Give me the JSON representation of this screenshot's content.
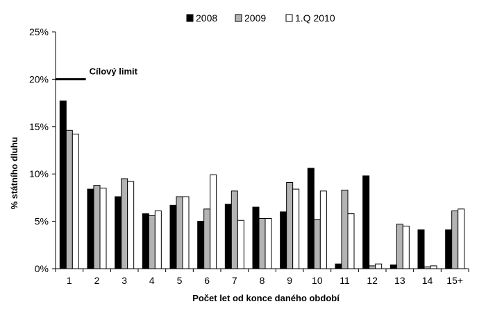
{
  "chart_data": {
    "type": "bar",
    "xlabel": "Počet let od konce daného období",
    "ylabel": "% státního dluhu",
    "ylim": [
      0,
      25
    ],
    "yticks": [
      0,
      5,
      10,
      15,
      20,
      25
    ],
    "ytick_labels": [
      "0%",
      "5%",
      "10%",
      "15%",
      "20%",
      "25%"
    ],
    "grid": false,
    "legend_position": "top-center",
    "categories": [
      "1",
      "2",
      "3",
      "4",
      "5",
      "6",
      "7",
      "8",
      "9",
      "10",
      "11",
      "12",
      "13",
      "14",
      "15+"
    ],
    "series": [
      {
        "name": "2008",
        "color": "#000000",
        "values": [
          17.7,
          8.4,
          7.6,
          5.8,
          6.7,
          5.0,
          6.8,
          6.5,
          6.0,
          10.6,
          0.5,
          9.8,
          0.4,
          4.1,
          4.1
        ]
      },
      {
        "name": "2009",
        "color": "#b3b3b3",
        "values": [
          14.6,
          8.8,
          9.5,
          5.6,
          7.6,
          6.3,
          8.2,
          5.3,
          9.1,
          5.2,
          8.3,
          0.3,
          4.7,
          0.2,
          6.1
        ]
      },
      {
        "name": "1.Q 2010",
        "color": "#ffffff",
        "values": [
          14.2,
          8.5,
          9.2,
          6.1,
          7.6,
          9.9,
          5.1,
          5.3,
          8.4,
          8.2,
          5.8,
          0.5,
          4.5,
          0.3,
          6.3
        ]
      }
    ],
    "annotations": [
      {
        "type": "horizontal-line",
        "label": "Cílový limit",
        "y": 20,
        "x_start": "1",
        "x_end": "2"
      }
    ]
  }
}
